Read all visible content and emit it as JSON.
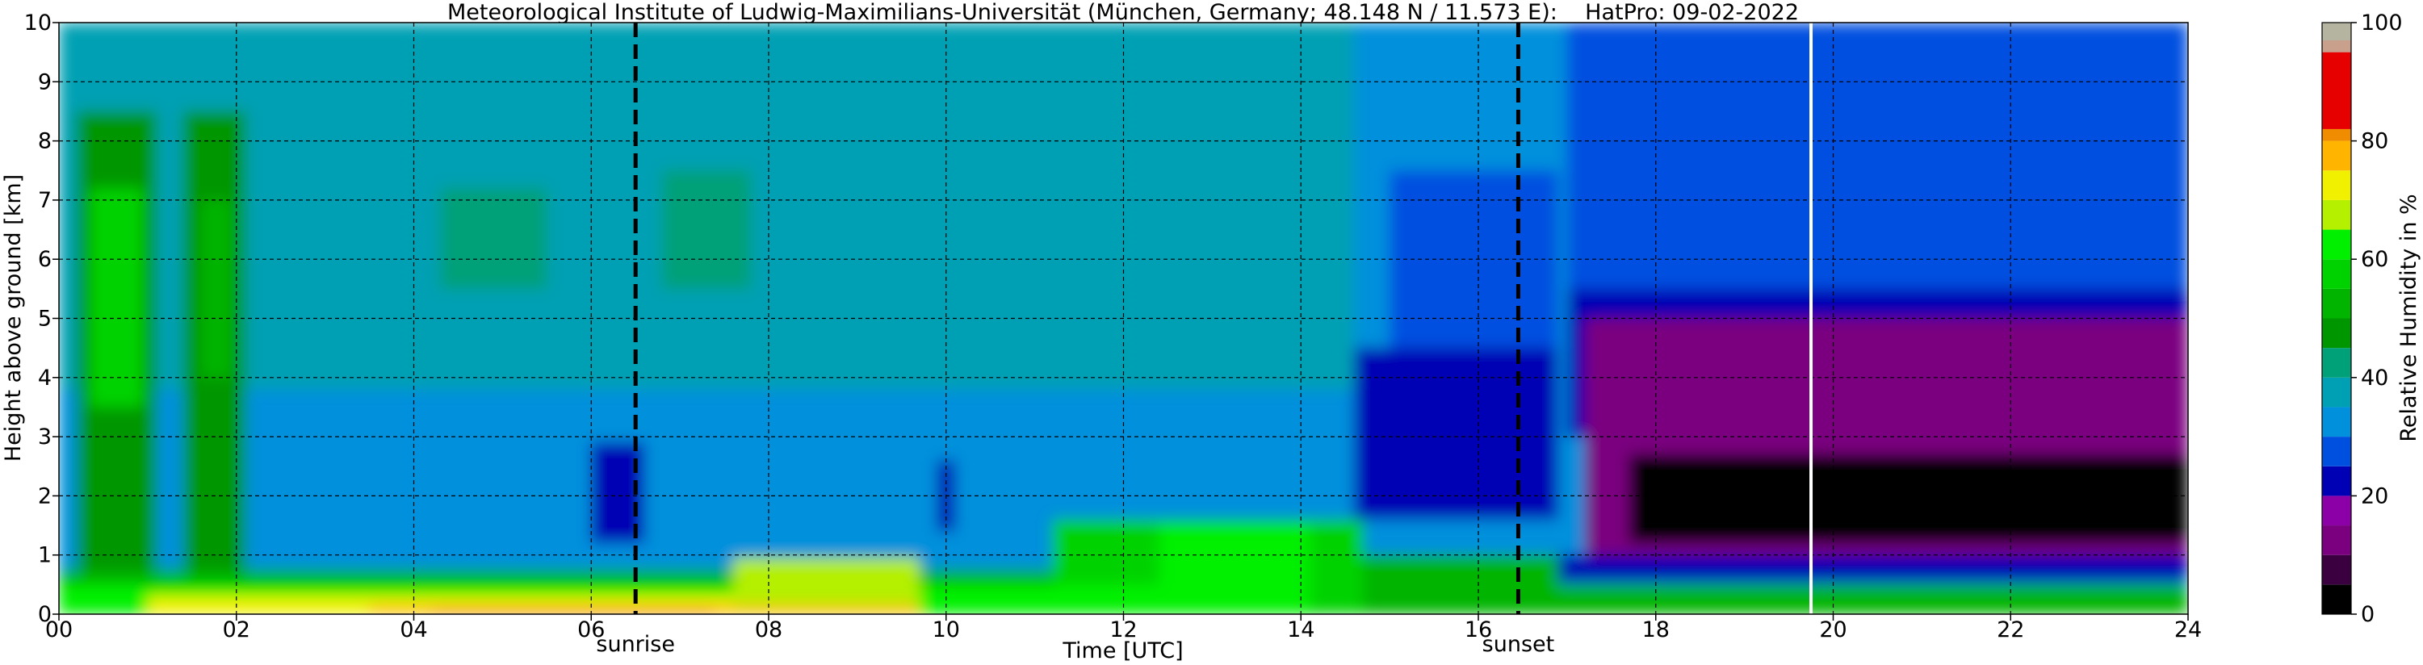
{
  "chart_data": {
    "type": "heatmap",
    "title": "Meteorological Institute of Ludwig-Maximilians-Universität (München, Germany; 48.148 N / 11.573 E):    HatPro: 09-02-2022",
    "xlabel": "Time [UTC]",
    "ylabel": "Height above ground [km]",
    "xlim": [
      0,
      24
    ],
    "ylim": [
      0,
      10
    ],
    "x_ticks": [
      0,
      2,
      4,
      6,
      8,
      10,
      12,
      14,
      16,
      18,
      20,
      22,
      24
    ],
    "x_tick_labels": [
      "00",
      "02",
      "04",
      "06",
      "08",
      "10",
      "12",
      "14",
      "16",
      "18",
      "20",
      "22",
      "24"
    ],
    "y_ticks": [
      0,
      1,
      2,
      3,
      4,
      5,
      6,
      7,
      8,
      9,
      10
    ],
    "y_tick_labels": [
      "0",
      "1",
      "2",
      "3",
      "4",
      "5",
      "6",
      "7",
      "8",
      "9",
      "10"
    ],
    "grid": true,
    "colorbar": {
      "label": "Relative Humidity in %",
      "range": [
        0,
        100
      ],
      "ticks": [
        0,
        20,
        40,
        60,
        80,
        100
      ],
      "tick_labels": [
        "0",
        "20",
        "40",
        "60",
        "80",
        "100"
      ],
      "colors": [
        {
          "from": 0,
          "to": 5,
          "color": "#000000"
        },
        {
          "from": 5,
          "to": 10,
          "color": "#3a0040"
        },
        {
          "from": 10,
          "to": 15,
          "color": "#7a007f"
        },
        {
          "from": 15,
          "to": 20,
          "color": "#8c00a8"
        },
        {
          "from": 20,
          "to": 25,
          "color": "#0000b4"
        },
        {
          "from": 25,
          "to": 30,
          "color": "#0050e0"
        },
        {
          "from": 30,
          "to": 35,
          "color": "#0090dc"
        },
        {
          "from": 35,
          "to": 40,
          "color": "#00a0b4"
        },
        {
          "from": 40,
          "to": 45,
          "color": "#00a078"
        },
        {
          "from": 45,
          "to": 50,
          "color": "#009600"
        },
        {
          "from": 50,
          "to": 55,
          "color": "#00b400"
        },
        {
          "from": 55,
          "to": 60,
          "color": "#00d200"
        },
        {
          "from": 60,
          "to": 65,
          "color": "#00f000"
        },
        {
          "from": 65,
          "to": 70,
          "color": "#b4f000"
        },
        {
          "from": 70,
          "to": 75,
          "color": "#f0f000"
        },
        {
          "from": 75,
          "to": 80,
          "color": "#ffb400"
        },
        {
          "from": 80,
          "to": 82,
          "color": "#f08c00"
        },
        {
          "from": 82,
          "to": 95,
          "color": "#e60000"
        },
        {
          "from": 95,
          "to": 97,
          "color": "#c8a08c"
        },
        {
          "from": 97,
          "to": 100,
          "color": "#b4b4a0"
        }
      ]
    },
    "annotations": [
      {
        "x": 6.5,
        "label": "sunrise",
        "style": "dashed",
        "color": "#000000"
      },
      {
        "x": 16.45,
        "label": "sunset",
        "style": "dashed",
        "color": "#000000"
      },
      {
        "x": 19.75,
        "label": "",
        "style": "solid",
        "color": "#ffffff"
      }
    ],
    "humidity_regions": [
      {
        "x": [
          0,
          24
        ],
        "y": [
          0,
          10
        ],
        "value": 38
      },
      {
        "x": [
          0,
          24
        ],
        "y": [
          0,
          3.8
        ],
        "value": 33
      },
      {
        "x": [
          14.6,
          24
        ],
        "y": [
          0,
          10
        ],
        "value": 31
      },
      {
        "x": [
          0.2,
          1.1
        ],
        "y": [
          0.5,
          8.5
        ],
        "value": 47
      },
      {
        "x": [
          1.4,
          2.1
        ],
        "y": [
          0.5,
          8.5
        ],
        "value": 46
      },
      {
        "x": [
          0.35,
          0.95
        ],
        "y": [
          3.5,
          7.2
        ],
        "value": 56
      },
      {
        "x": [
          1.6,
          1.95
        ],
        "y": [
          4.0,
          7.0
        ],
        "value": 50
      },
      {
        "x": [
          4.3,
          5.5
        ],
        "y": [
          5.5,
          7.2
        ],
        "value": 40
      },
      {
        "x": [
          6.8,
          7.8
        ],
        "y": [
          5.5,
          7.5
        ],
        "value": 41
      },
      {
        "x": [
          14.6,
          16.9
        ],
        "y": [
          1.6,
          4.5
        ],
        "value": 22
      },
      {
        "x": [
          15.0,
          16.9
        ],
        "y": [
          4.5,
          7.5
        ],
        "value": 27
      },
      {
        "x": [
          17.0,
          24
        ],
        "y": [
          3.0,
          10
        ],
        "value": 23
      },
      {
        "x": [
          17.0,
          24
        ],
        "y": [
          5.5,
          10
        ],
        "value": 25
      },
      {
        "x": [
          17.2,
          24
        ],
        "y": [
          1.0,
          5.0
        ],
        "value": 14
      },
      {
        "x": [
          17.7,
          24
        ],
        "y": [
          1.2,
          2.7
        ],
        "value": 2
      },
      {
        "x": [
          6.0,
          6.6
        ],
        "y": [
          1.2,
          2.9
        ],
        "value": 22
      },
      {
        "x": [
          9.9,
          10.1
        ],
        "y": [
          1.4,
          2.6
        ],
        "value": 22
      },
      {
        "x": [
          0,
          14.7
        ],
        "y": [
          0,
          0.75
        ],
        "value": 52
      },
      {
        "x": [
          11.2,
          14.7
        ],
        "y": [
          0,
          1.6
        ],
        "value": 55
      },
      {
        "x": [
          12.4,
          14.1
        ],
        "y": [
          0,
          1.5
        ],
        "value": 62
      },
      {
        "x": [
          14.7,
          16.9
        ],
        "y": [
          0,
          1.0
        ],
        "value": 52
      },
      {
        "x": [
          16.9,
          24
        ],
        "y": [
          0.55,
          1.0
        ],
        "value": 22
      },
      {
        "x": [
          16.9,
          24
        ],
        "y": [
          0,
          0.5
        ],
        "value": 50
      },
      {
        "x": [
          0,
          14.0
        ],
        "y": [
          0,
          0.5
        ],
        "value": 64
      },
      {
        "x": [
          1.0,
          9.7
        ],
        "y": [
          0,
          0.3
        ],
        "value": 72
      },
      {
        "x": [
          7.6,
          9.7
        ],
        "y": [
          0,
          0.95
        ],
        "value": 68
      },
      {
        "x": [
          3.5,
          9.7
        ],
        "y": [
          0,
          0.15
        ],
        "value": 77
      },
      {
        "x": [
          4.2,
          7.4
        ],
        "y": [
          0,
          0.06
        ],
        "value": 88
      }
    ]
  }
}
